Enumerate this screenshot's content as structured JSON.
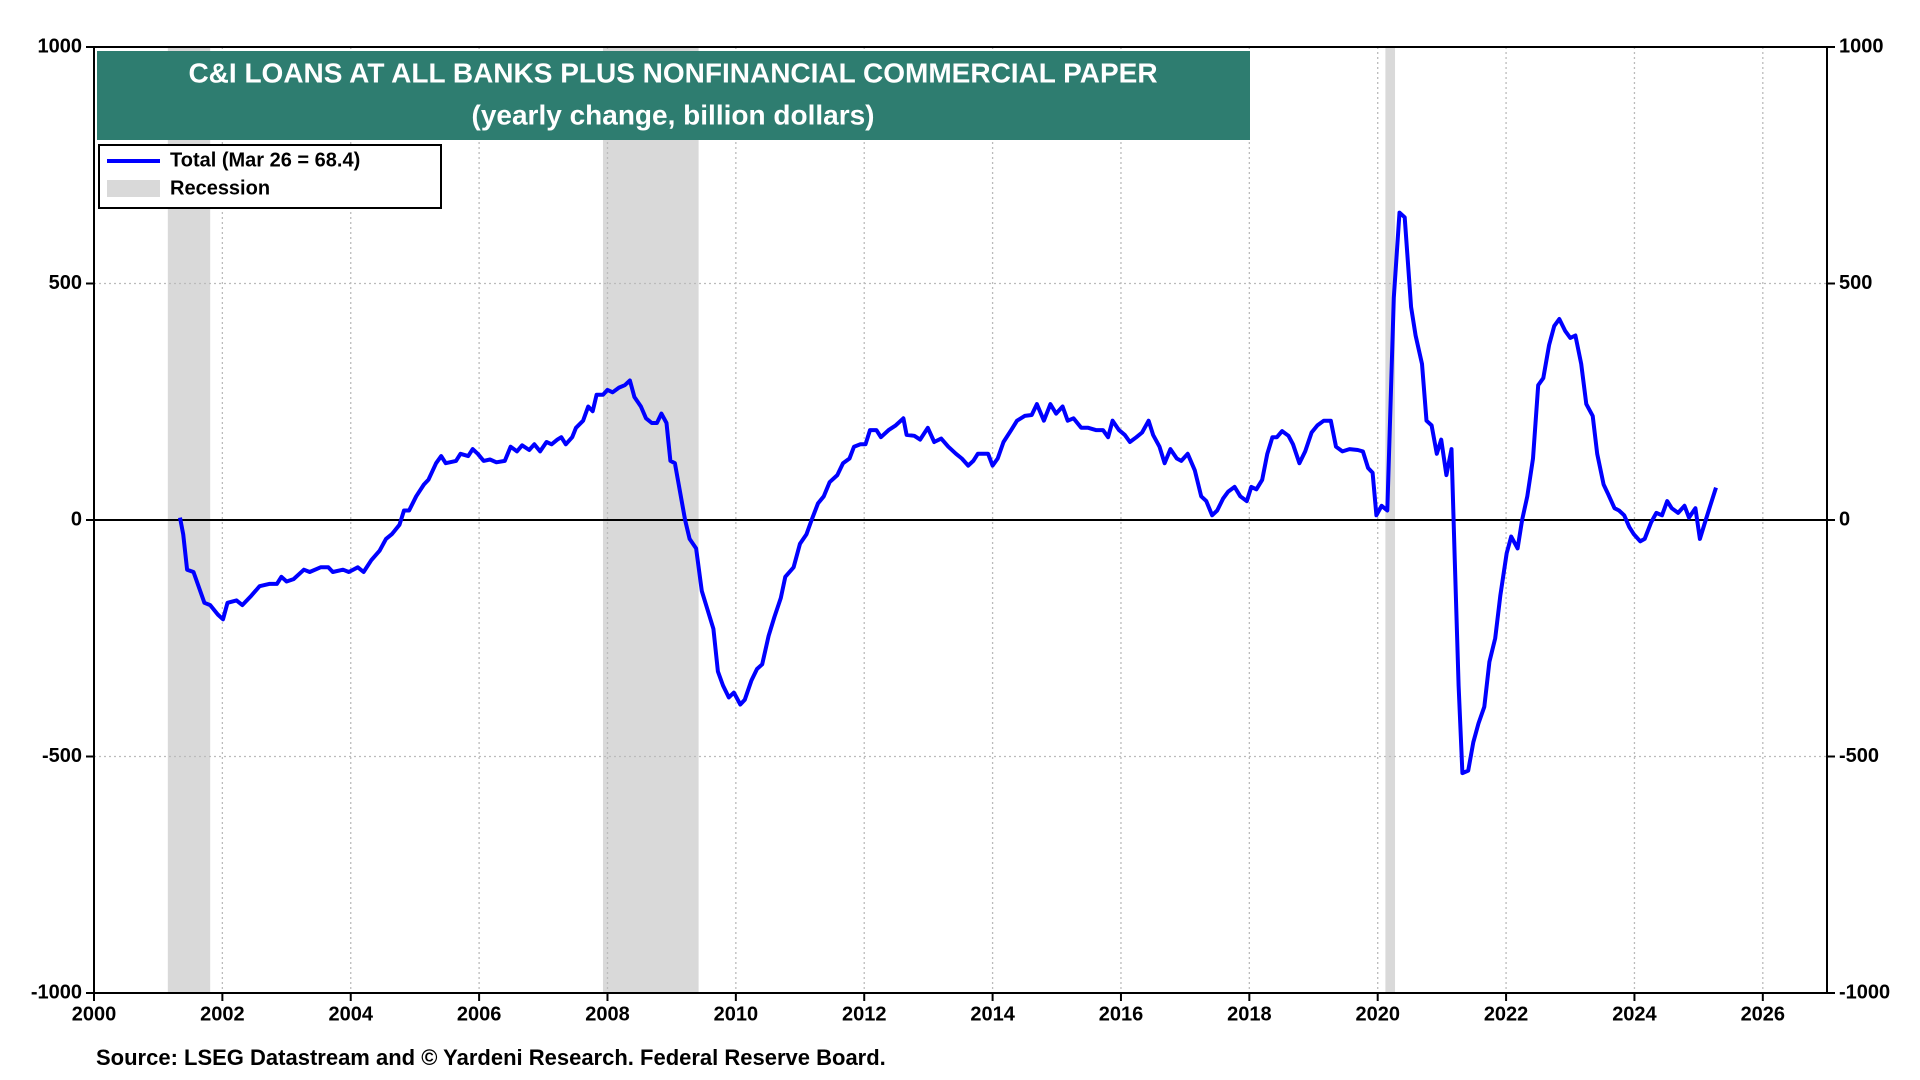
{
  "chart_data": {
    "type": "line",
    "title": "C&I LOANS AT ALL BANKS PLUS NONFINANCIAL COMMERCIAL PAPER",
    "subtitle": "(yearly change, billion dollars)",
    "source": "Source: LSEG Datastream and © Yardeni Research. Federal Reserve Board.",
    "xlim": [
      2000,
      2027
    ],
    "xticks": [
      2000,
      2002,
      2004,
      2006,
      2008,
      2010,
      2012,
      2014,
      2016,
      2018,
      2020,
      2022,
      2024,
      2026
    ],
    "ylim": [
      -1000,
      1000
    ],
    "yticks": [
      -1000,
      -500,
      0,
      500,
      1000
    ],
    "y2lim": [
      -1000,
      1000
    ],
    "y2ticks": [
      -1000,
      -500,
      0,
      500,
      1000
    ],
    "grid": true,
    "recessions": {
      "name": "Recession",
      "color": "#d9d9d9",
      "periods": [
        [
          2001.15,
          2001.81
        ],
        [
          2007.93,
          2009.42
        ],
        [
          2020.12,
          2020.27
        ]
      ]
    },
    "x": [
      2001.34,
      2001.39,
      2001.45,
      2001.55,
      2001.72,
      2001.81,
      2001.93,
      2002.01,
      2002.08,
      2002.22,
      2002.31,
      2002.45,
      2002.58,
      2002.73,
      2002.85,
      2002.92,
      2003.0,
      2003.11,
      2003.27,
      2003.36,
      2003.53,
      2003.65,
      2003.72,
      2003.88,
      2003.97,
      2004.11,
      2004.2,
      2004.32,
      2004.45,
      2004.55,
      2004.64,
      2004.76,
      2004.83,
      2004.91,
      2005.02,
      2005.14,
      2005.21,
      2005.33,
      2005.41,
      2005.48,
      2005.64,
      2005.71,
      2005.83,
      2005.9,
      2005.98,
      2006.07,
      2006.17,
      2006.27,
      2006.4,
      2006.49,
      2006.59,
      2006.67,
      2006.78,
      2006.86,
      2006.95,
      2007.05,
      2007.13,
      2007.22,
      2007.28,
      2007.35,
      2007.45,
      2007.51,
      2007.62,
      2007.7,
      2007.77,
      2007.83,
      2007.93,
      2008.0,
      2008.08,
      2008.18,
      2008.27,
      2008.35,
      2008.42,
      2008.52,
      2008.6,
      2008.69,
      2008.77,
      2008.84,
      2008.92,
      2008.98,
      2009.05,
      2009.13,
      2009.21,
      2009.28,
      2009.38,
      2009.47,
      2009.57,
      2009.65,
      2009.72,
      2009.8,
      2009.89,
      2009.97,
      2010.07,
      2010.14,
      2010.24,
      2010.33,
      2010.41,
      2010.51,
      2010.6,
      2010.7,
      2010.77,
      2010.9,
      2011.0,
      2011.1,
      2011.18,
      2011.28,
      2011.37,
      2011.46,
      2011.58,
      2011.67,
      2011.77,
      2011.84,
      2011.94,
      2012.02,
      2012.09,
      2012.19,
      2012.26,
      2012.38,
      2012.49,
      2012.61,
      2012.66,
      2012.78,
      2012.87,
      2012.99,
      2013.09,
      2013.2,
      2013.31,
      2013.43,
      2013.52,
      2013.62,
      2013.7,
      2013.77,
      2013.93,
      2014.0,
      2014.08,
      2014.17,
      2014.29,
      2014.38,
      2014.5,
      2014.61,
      2014.69,
      2014.8,
      2014.9,
      2014.99,
      2015.09,
      2015.17,
      2015.26,
      2015.38,
      2015.49,
      2015.61,
      2015.72,
      2015.8,
      2015.87,
      2015.97,
      2016.06,
      2016.14,
      2016.24,
      2016.33,
      2016.43,
      2016.5,
      2016.6,
      2016.68,
      2016.77,
      2016.87,
      2016.94,
      2017.04,
      2017.15,
      2017.25,
      2017.33,
      2017.42,
      2017.5,
      2017.59,
      2017.67,
      2017.77,
      2017.86,
      2017.96,
      2018.03,
      2018.11,
      2018.2,
      2018.28,
      2018.36,
      2018.43,
      2018.51,
      2018.61,
      2018.68,
      2018.78,
      2018.87,
      2018.97,
      2019.06,
      2019.16,
      2019.27,
      2019.35,
      2019.45,
      2019.56,
      2019.69,
      2019.77,
      2019.85,
      2019.92,
      2019.98,
      2020.06,
      2020.15,
      2020.25,
      2020.34,
      2020.42,
      2020.52,
      2020.59,
      2020.69,
      2020.76,
      2020.84,
      2020.92,
      2020.99,
      2021.07,
      2021.15,
      2021.2,
      2021.26,
      2021.32,
      2021.41,
      2021.49,
      2021.57,
      2021.66,
      2021.74,
      2021.83,
      2021.91,
      2022.01,
      2022.08,
      2022.18,
      2022.25,
      2022.33,
      2022.42,
      2022.5,
      2022.58,
      2022.67,
      2022.75,
      2022.83,
      2022.92,
      2023.0,
      2023.08,
      2023.17,
      2023.25,
      2023.35,
      2023.42,
      2023.52,
      2023.59,
      2023.69,
      2023.76,
      2023.84,
      2023.92,
      2023.99,
      2024.09,
      2024.16,
      2024.26,
      2024.34,
      2024.43,
      2024.51,
      2024.58,
      2024.68,
      2024.78,
      2024.85,
      2024.95,
      2025.02,
      2025.1,
      2025.18,
      2025.27
    ],
    "series": [
      {
        "name": "Total (Mar 26 = 68.4)",
        "color": "#0000ff",
        "values": [
          5,
          -30,
          -105,
          -110,
          -175,
          -180,
          -200,
          -210,
          -175,
          -170,
          -180,
          -160,
          -140,
          -135,
          -135,
          -120,
          -130,
          -125,
          -105,
          -110,
          -100,
          -100,
          -110,
          -105,
          -110,
          -100,
          -110,
          -85,
          -65,
          -40,
          -30,
          -10,
          20,
          20,
          50,
          75,
          85,
          120,
          135,
          120,
          125,
          140,
          135,
          150,
          140,
          125,
          128,
          122,
          125,
          155,
          145,
          158,
          148,
          160,
          145,
          165,
          160,
          170,
          175,
          160,
          175,
          195,
          210,
          240,
          230,
          265,
          265,
          275,
          270,
          280,
          285,
          295,
          260,
          240,
          215,
          205,
          205,
          225,
          205,
          125,
          120,
          60,
          0,
          -40,
          -60,
          -150,
          -195,
          -230,
          -320,
          -350,
          -375,
          -365,
          -390,
          -380,
          -340,
          -315,
          -305,
          -245,
          -205,
          -165,
          -120,
          -100,
          -50,
          -30,
          0,
          35,
          50,
          80,
          95,
          120,
          130,
          155,
          160,
          160,
          190,
          190,
          175,
          190,
          200,
          215,
          180,
          178,
          170,
          195,
          165,
          172,
          155,
          140,
          130,
          115,
          125,
          140,
          140,
          115,
          130,
          165,
          190,
          210,
          220,
          222,
          245,
          210,
          245,
          225,
          240,
          210,
          215,
          195,
          195,
          190,
          190,
          175,
          210,
          190,
          180,
          165,
          175,
          185,
          210,
          180,
          155,
          120,
          150,
          130,
          125,
          140,
          105,
          50,
          40,
          10,
          20,
          45,
          60,
          70,
          50,
          40,
          70,
          65,
          85,
          140,
          175,
          175,
          188,
          178,
          160,
          120,
          145,
          185,
          200,
          210,
          210,
          155,
          145,
          150,
          148,
          145,
          110,
          100,
          10,
          30,
          20,
          470,
          650,
          640,
          450,
          390,
          330,
          210,
          200,
          140,
          170,
          95,
          150,
          -80,
          -350,
          -535,
          -530,
          -470,
          -430,
          -395,
          -300,
          -250,
          -160,
          -70,
          -35,
          -60,
          0,
          50,
          130,
          285,
          300,
          370,
          410,
          425,
          400,
          385,
          390,
          330,
          245,
          220,
          140,
          75,
          55,
          25,
          20,
          10,
          -15,
          -30,
          -45,
          -40,
          -5,
          15,
          10,
          40,
          25,
          15,
          30,
          5,
          25,
          -40,
          -5,
          30,
          68.4
        ]
      }
    ]
  }
}
